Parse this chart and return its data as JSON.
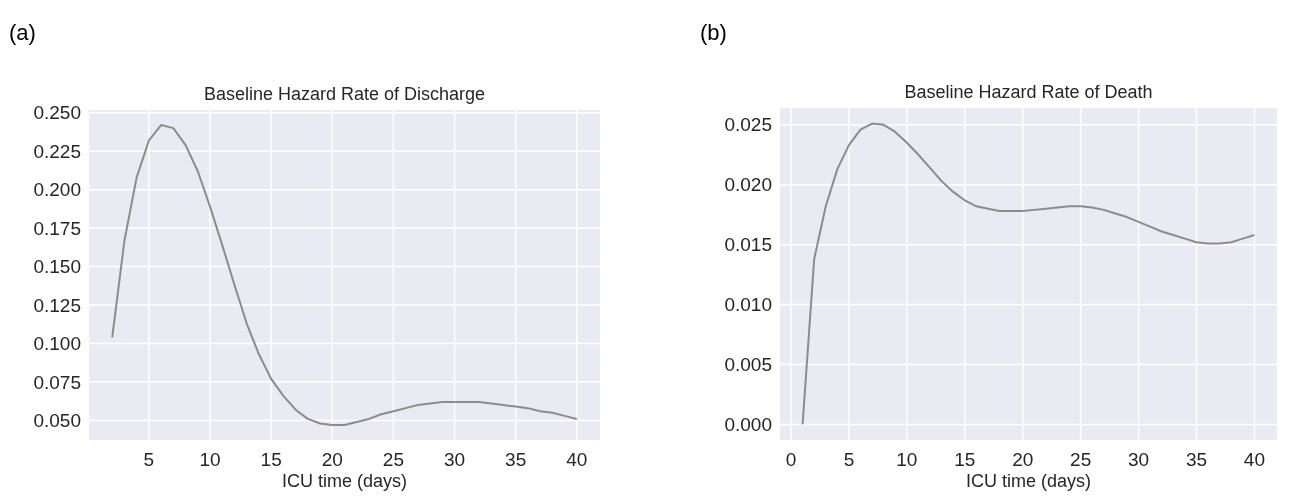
{
  "chart_data": [
    {
      "type": "line",
      "title": "Baseline Hazard Rate of Discharge",
      "xlabel": "ICU time (days)",
      "annotations": [
        "(a)"
      ],
      "grid": true,
      "x": [
        2,
        3,
        4,
        5,
        6,
        7,
        8,
        9,
        10,
        11,
        12,
        13,
        14,
        15,
        16,
        17,
        18,
        19,
        20,
        21,
        22,
        23,
        24,
        25,
        26,
        27,
        28,
        29,
        30,
        31,
        32,
        33,
        34,
        35,
        36,
        37,
        38,
        39,
        40
      ],
      "series": [
        {
          "color": "#8c8c8c",
          "values": [
            0.104,
            0.167,
            0.208,
            0.232,
            0.242,
            0.24,
            0.229,
            0.212,
            0.189,
            0.164,
            0.138,
            0.113,
            0.093,
            0.077,
            0.066,
            0.057,
            0.051,
            0.048,
            0.047,
            0.047,
            0.049,
            0.051,
            0.054,
            0.056,
            0.058,
            0.06,
            0.061,
            0.062,
            0.062,
            0.062,
            0.062,
            0.061,
            0.06,
            0.059,
            0.058,
            0.056,
            0.055,
            0.053,
            0.051
          ]
        }
      ],
      "xlim": [
        0.1,
        41.9
      ],
      "xticks": [
        5,
        10,
        15,
        20,
        25,
        30,
        35,
        40
      ],
      "ylim": [
        0.0373,
        0.2518
      ],
      "yticks": [
        {
          "value": 0.05,
          "label": "0.050"
        },
        {
          "value": 0.075,
          "label": "0.075"
        },
        {
          "value": 0.1,
          "label": "0.100"
        },
        {
          "value": 0.125,
          "label": "0.125"
        },
        {
          "value": 0.15,
          "label": "0.150"
        },
        {
          "value": 0.175,
          "label": "0.175"
        },
        {
          "value": 0.2,
          "label": "0.200"
        },
        {
          "value": 0.225,
          "label": "0.225"
        },
        {
          "value": 0.25,
          "label": "0.250"
        }
      ]
    },
    {
      "type": "line",
      "title": "Baseline Hazard Rate of Death",
      "xlabel": "ICU time (days)",
      "annotations": [
        "(b)"
      ],
      "grid": true,
      "x": [
        1,
        2,
        3,
        4,
        5,
        6,
        7,
        8,
        9,
        10,
        11,
        12,
        13,
        14,
        15,
        16,
        17,
        18,
        19,
        20,
        21,
        22,
        23,
        24,
        25,
        26,
        27,
        28,
        29,
        30,
        31,
        32,
        33,
        34,
        35,
        36,
        37,
        38,
        39,
        40
      ],
      "series": [
        {
          "color": "#8c8c8c",
          "values": [
            0,
            0.0138,
            0.0182,
            0.0213,
            0.0233,
            0.0246,
            0.0251,
            0.025,
            0.0244,
            0.0235,
            0.0225,
            0.0214,
            0.0203,
            0.0194,
            0.0187,
            0.0182,
            0.018,
            0.0178,
            0.0178,
            0.0178,
            0.0179,
            0.018,
            0.0181,
            0.0182,
            0.0182,
            0.0181,
            0.0179,
            0.0176,
            0.0173,
            0.0169,
            0.0165,
            0.0161,
            0.0158,
            0.0155,
            0.0152,
            0.0151,
            0.0151,
            0.0152,
            0.0155,
            0.0158
          ]
        }
      ],
      "xlim": [
        -0.95,
        41.95
      ],
      "xticks": [
        0,
        5,
        10,
        15,
        20,
        25,
        30,
        35,
        40
      ],
      "ylim": [
        -0.0013,
        0.0264
      ],
      "yticks": [
        {
          "value": 0,
          "label": "0.000"
        },
        {
          "value": 0.005,
          "label": "0.005"
        },
        {
          "value": 0.01,
          "label": "0.010"
        },
        {
          "value": 0.015,
          "label": "0.015"
        },
        {
          "value": 0.02,
          "label": "0.020"
        },
        {
          "value": 0.025,
          "label": "0.025"
        }
      ]
    }
  ]
}
